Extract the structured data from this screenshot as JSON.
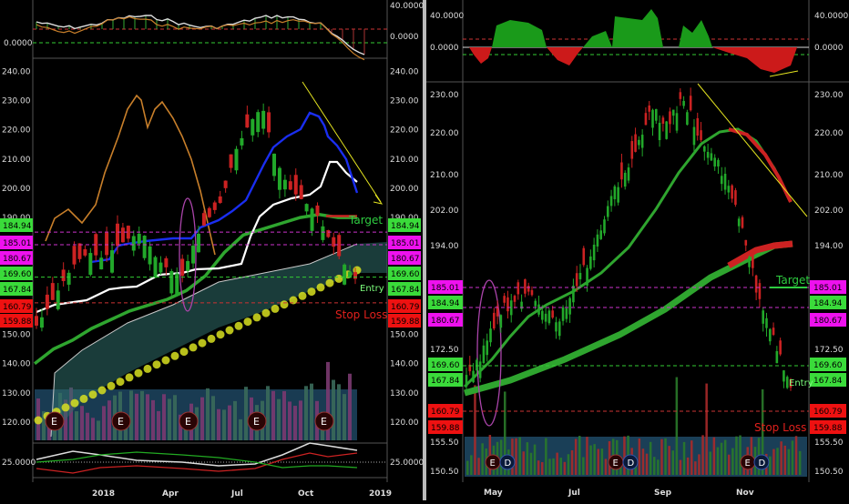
{
  "colors": {
    "background": "#000000",
    "candle_up": "#22a82a",
    "candle_down": "#cc2222",
    "target": "#2ecc40",
    "stop": "#e0201c",
    "entry": "#7dff7d",
    "ma_green": "#2fa52f",
    "ma_white": "#ffffff",
    "ma_blue": "#1a2ef0",
    "ma_orange": "#c87f2a",
    "dots": "#d8e020",
    "trend": "#e4e420",
    "cloud": "#2f6e6a",
    "label_green": "#3adb3a",
    "label_magenta": "#ee11ee",
    "label_red": "#ee1111"
  },
  "left_chart": {
    "top_axis_labels": [
      "40.0000",
      "0.0000"
    ],
    "main_axis_ticks": [
      "240.00",
      "230.00",
      "220.00",
      "210.00",
      "200.00",
      "190.00",
      "150.00",
      "140.00",
      "130.00",
      "120.00"
    ],
    "price_tags": [
      {
        "text": "184.94",
        "value": 184.94,
        "color": "green"
      },
      {
        "text": "185.01",
        "value": 185.01,
        "color": "magenta"
      },
      {
        "text": "180.67",
        "value": 180.67,
        "color": "magenta"
      },
      {
        "text": "169.60",
        "value": 169.6,
        "color": "green"
      },
      {
        "text": "167.84",
        "value": 167.84,
        "color": "green"
      },
      {
        "text": "160.79",
        "value": 160.79,
        "color": "red"
      },
      {
        "text": "159.88",
        "value": 159.88,
        "color": "red"
      }
    ],
    "annotations": {
      "target": "Target",
      "entry": "Entry",
      "stop": "Stop Loss"
    },
    "earnings_marker": "E",
    "bottom_axis_label": "25.0000",
    "x_labels": [
      "2018",
      "Apr",
      "Jul",
      "Oct",
      "2019"
    ]
  },
  "right_chart": {
    "top_axis_labels": [
      "40.0000",
      "0.0000"
    ],
    "main_axis_ticks": [
      "230.00",
      "220.00",
      "210.00",
      "202.00",
      "194.00",
      "172.50",
      "155.50",
      "150.50"
    ],
    "price_tags": [
      {
        "text": "185.01",
        "value": 185.01,
        "color": "magenta"
      },
      {
        "text": "184.94",
        "value": 184.94,
        "color": "green"
      },
      {
        "text": "180.67",
        "value": 180.67,
        "color": "magenta"
      },
      {
        "text": "169.60",
        "value": 169.6,
        "color": "green"
      },
      {
        "text": "167.84",
        "value": 167.84,
        "color": "green"
      },
      {
        "text": "160.79",
        "value": 160.79,
        "color": "red"
      },
      {
        "text": "159.88",
        "value": 159.88,
        "color": "red"
      }
    ],
    "annotations": {
      "target": "Target",
      "entry": "Entry",
      "stop": "Stop Loss"
    },
    "markers": [
      "E",
      "D"
    ],
    "x_labels": [
      "May",
      "Jul",
      "Sep",
      "Nov"
    ]
  },
  "chart_data": [
    {
      "type": "line",
      "panel": "left",
      "x_labels": [
        "2018",
        "Apr",
        "Jul",
        "Oct",
        "2019"
      ],
      "ylim": [
        115,
        242
      ],
      "series": [
        {
          "values": [
            153,
            160,
            168,
            175,
            178,
            176,
            180,
            183,
            185,
            176,
            172,
            170,
            183,
            190,
            196,
            213,
            222,
            228,
            210,
            200,
            196,
            192,
            183,
            175,
            169
          ]
        },
        {
          "values": [
            140,
            145,
            148,
            152,
            155,
            158,
            160,
            162,
            165,
            170,
            178,
            184,
            186,
            188,
            190,
            191,
            190,
            190
          ]
        }
      ]
    },
    {
      "type": "line",
      "panel": "right",
      "x_labels": [
        "May",
        "Jul",
        "Sep",
        "Nov"
      ],
      "ylim": [
        148,
        233
      ],
      "series": [
        {
          "values": [
            170,
            174,
            183,
            186,
            188,
            184,
            182,
            190,
            195,
            205,
            214,
            220,
            228,
            226,
            230,
            224,
            218,
            212,
            200,
            186,
            176,
            168
          ]
        },
        {
          "values": [
            165,
            165,
            166,
            168,
            170,
            172,
            174,
            176,
            178,
            180,
            182,
            185,
            187,
            189,
            191,
            192,
            193,
            193
          ]
        }
      ]
    }
  ]
}
